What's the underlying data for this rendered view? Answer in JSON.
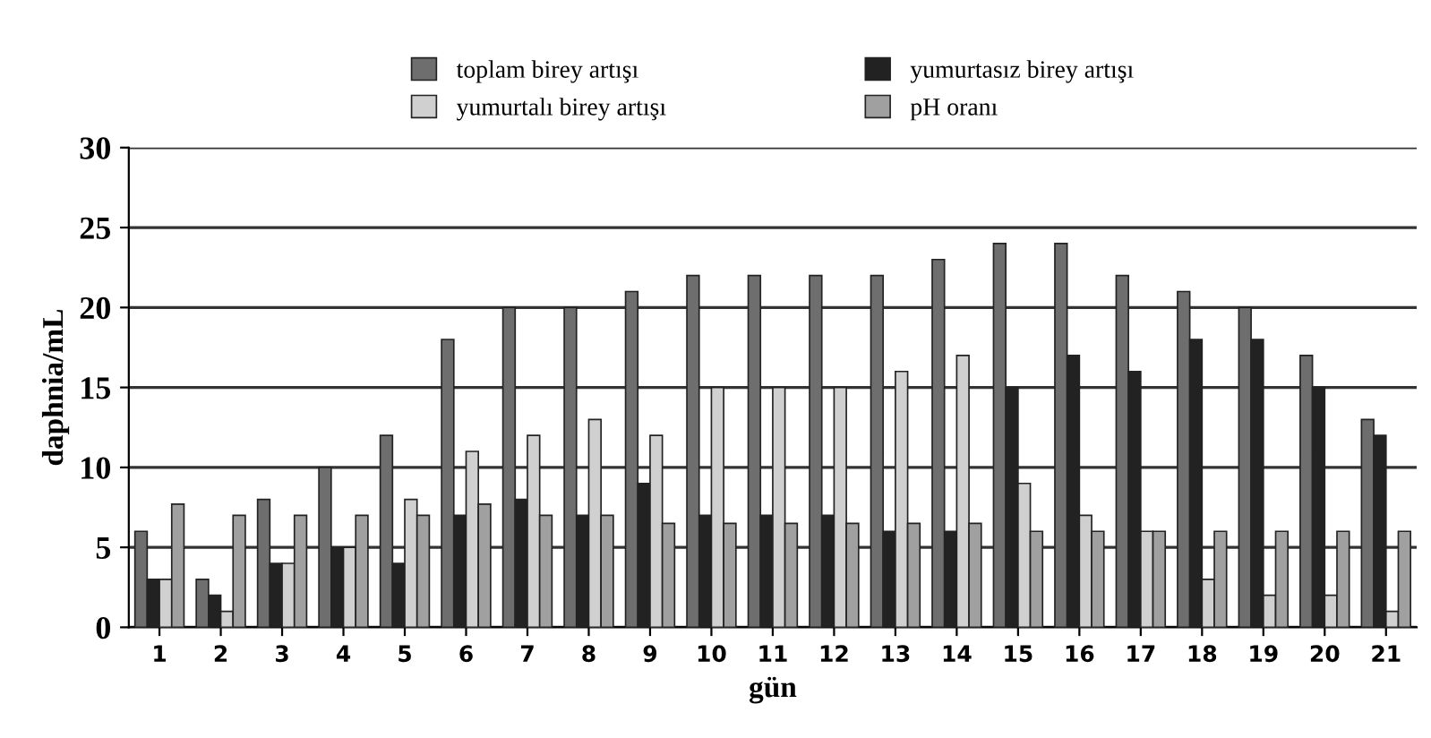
{
  "chart_data": {
    "type": "bar",
    "xlabel": "gün",
    "ylabel": "daphnia/mL",
    "categories": [
      "1",
      "2",
      "3",
      "4",
      "5",
      "6",
      "7",
      "8",
      "9",
      "10",
      "11",
      "12",
      "13",
      "14",
      "15",
      "16",
      "17",
      "18",
      "19",
      "20",
      "21"
    ],
    "series": [
      {
        "name": "toplam birey artışı",
        "color": "#6e6e6e",
        "values": [
          6,
          3,
          8,
          10,
          12,
          18,
          20,
          20,
          21,
          22,
          22,
          22,
          22,
          23,
          24,
          24,
          22,
          21,
          20,
          17,
          13
        ]
      },
      {
        "name": "yumurtasız birey artışı",
        "color": "#222222",
        "values": [
          3,
          2,
          4,
          5,
          4,
          7,
          8,
          7,
          9,
          7,
          7,
          7,
          6,
          6,
          15,
          17,
          16,
          18,
          18,
          15,
          12
        ]
      },
      {
        "name": "yumurtalı birey artışı",
        "color": "#d0d0d0",
        "values": [
          3,
          1,
          4,
          5,
          8,
          11,
          12,
          13,
          12,
          15,
          15,
          15,
          16,
          17,
          9,
          7,
          6,
          3,
          2,
          2,
          1
        ]
      },
      {
        "name": "pH oranı",
        "color": "#a0a0a0",
        "values": [
          7.7,
          7,
          7,
          7,
          7,
          7.7,
          7,
          7,
          6.5,
          6.5,
          6.5,
          6.5,
          6.5,
          6.5,
          6,
          6,
          6,
          6,
          6,
          6,
          6
        ]
      }
    ],
    "ylim": [
      0,
      30
    ],
    "yticks": [
      0,
      5,
      10,
      15,
      20,
      25,
      30
    ],
    "grid": "y",
    "legend": "top"
  }
}
